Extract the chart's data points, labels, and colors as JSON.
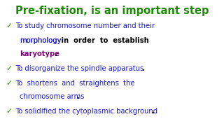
{
  "title": "Pre-fixation, is an important step",
  "title_color": "#1a8a00",
  "background_color": "#ffffff",
  "green": "#1a8a00",
  "blue": "#1a1acd",
  "purple": "#7f007f",
  "black": "#000000",
  "title_fontsize": 10.5,
  "body_fontsize": 7.2,
  "bullet_char": "✓",
  "line1": "To study chromosome number and their",
  "line2a": "morphology",
  "line2b": " in  order  to  establish",
  "line3a": "karyotype",
  "line3b": ".",
  "line4": "To disorganize the spindle apparatus",
  "line4dot": ".",
  "line5": "To  shortens  and  straightens  the",
  "line6": "chromosome arms",
  "line6dot": ".",
  "line7": "To solidified the cytoplasmic background",
  "line7dot": "."
}
